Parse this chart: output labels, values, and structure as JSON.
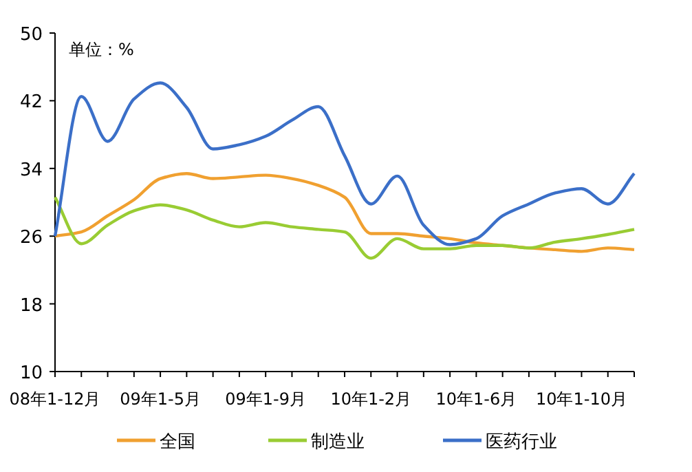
{
  "chart_data": {
    "type": "line",
    "annotations": [
      "单位：%"
    ],
    "categories": [
      "08年1-12月",
      null,
      null,
      null,
      "09年1-5月",
      null,
      null,
      null,
      "09年1-9月",
      null,
      null,
      null,
      "10年1-2月",
      null,
      null,
      null,
      "10年1-6月",
      null,
      null,
      null,
      "10年1-10月",
      null,
      null
    ],
    "series": [
      {
        "name": "全国",
        "color": "#f0a030",
        "values": [
          26.0,
          26.5,
          28.4,
          30.3,
          32.8,
          33.4,
          32.8,
          33.0,
          33.2,
          32.8,
          32.0,
          30.6,
          26.3,
          26.3,
          26.0,
          25.7,
          25.2,
          24.9,
          24.6,
          24.4,
          24.2,
          24.6,
          24.4
        ]
      },
      {
        "name": "制造业",
        "color": "#99cc33",
        "values": [
          30.6,
          25.1,
          27.3,
          29.0,
          29.7,
          29.1,
          27.9,
          27.1,
          27.6,
          27.1,
          26.8,
          26.5,
          23.4,
          25.7,
          24.5,
          24.5,
          24.9,
          24.9,
          24.6,
          25.3,
          25.7,
          26.2,
          26.8
        ]
      },
      {
        "name": "医药行业",
        "color": "#3b6fc8",
        "values": [
          26.0,
          42.5,
          37.2,
          42.2,
          44.1,
          41.2,
          36.3,
          36.8,
          37.8,
          39.7,
          41.3,
          35.5,
          29.8,
          33.1,
          27.3,
          25.0,
          25.7,
          28.4,
          29.8,
          31.1,
          31.6,
          29.8,
          33.4
        ]
      }
    ],
    "ylim": [
      10,
      50
    ],
    "yticks": [
      10,
      18,
      26,
      34,
      42,
      50
    ],
    "grid": false,
    "legend": "bottom",
    "marker": "none",
    "line_style": "solid"
  }
}
